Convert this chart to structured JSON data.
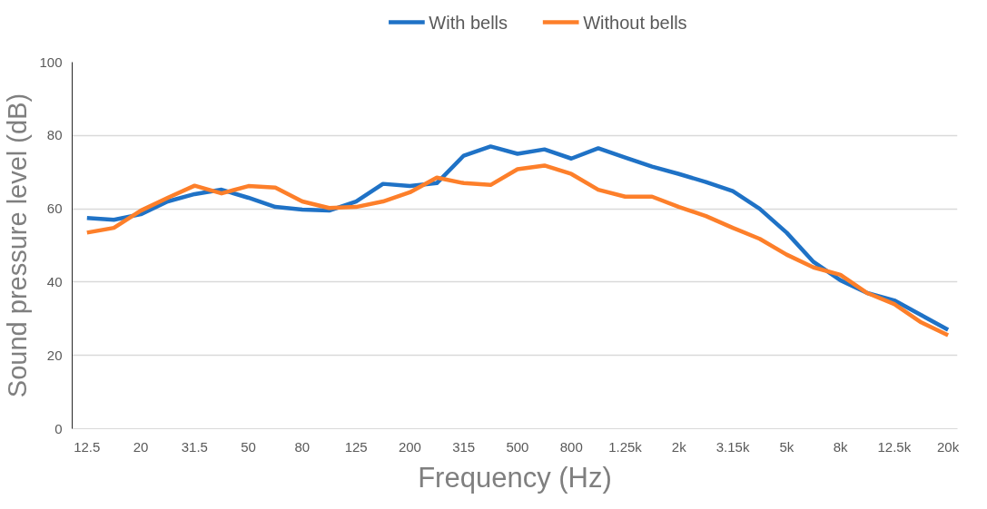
{
  "chart_data": {
    "type": "line",
    "xlabel": "Frequency (Hz)",
    "ylabel": "Sound pressure level (dB)",
    "categories": [
      "12.5",
      null,
      "20",
      null,
      "31.5",
      null,
      "50",
      null,
      "80",
      null,
      "125",
      null,
      "200",
      null,
      "315",
      null,
      "500",
      null,
      "800",
      null,
      "1.25k",
      null,
      "2k",
      null,
      "3.15k",
      null,
      "5k",
      null,
      "8k",
      null,
      "12.5k",
      null,
      "20k"
    ],
    "series": [
      {
        "name": "With bells",
        "color": "#1f72c6",
        "values": [
          57.5,
          57,
          58.5,
          62,
          64,
          65.2,
          63,
          60.5,
          59.8,
          59.5,
          62,
          66.8,
          66.2,
          67,
          74.5,
          77,
          75,
          76.2,
          73.7,
          76.5,
          74,
          71.5,
          69.5,
          67.3,
          64.8,
          60,
          53.5,
          45.5,
          40.5,
          37,
          35,
          31,
          27
        ]
      },
      {
        "name": "Without bells",
        "color": "#fd7f2a",
        "values": [
          53.5,
          54.8,
          59.5,
          63,
          66.3,
          64.2,
          66.2,
          65.8,
          62,
          60.2,
          60.5,
          62,
          64.5,
          68.5,
          67,
          66.5,
          70.8,
          71.8,
          69.5,
          65.2,
          63.3,
          63.3,
          60.5,
          58,
          54.8,
          51.8,
          47.5,
          44,
          42,
          37,
          34,
          29,
          25.5
        ]
      }
    ],
    "ylim": [
      0,
      100
    ],
    "yticks": [
      0,
      20,
      40,
      60,
      80,
      100
    ],
    "grid": "y",
    "legend": "top",
    "marker": "none",
    "line_style": "solid"
  }
}
